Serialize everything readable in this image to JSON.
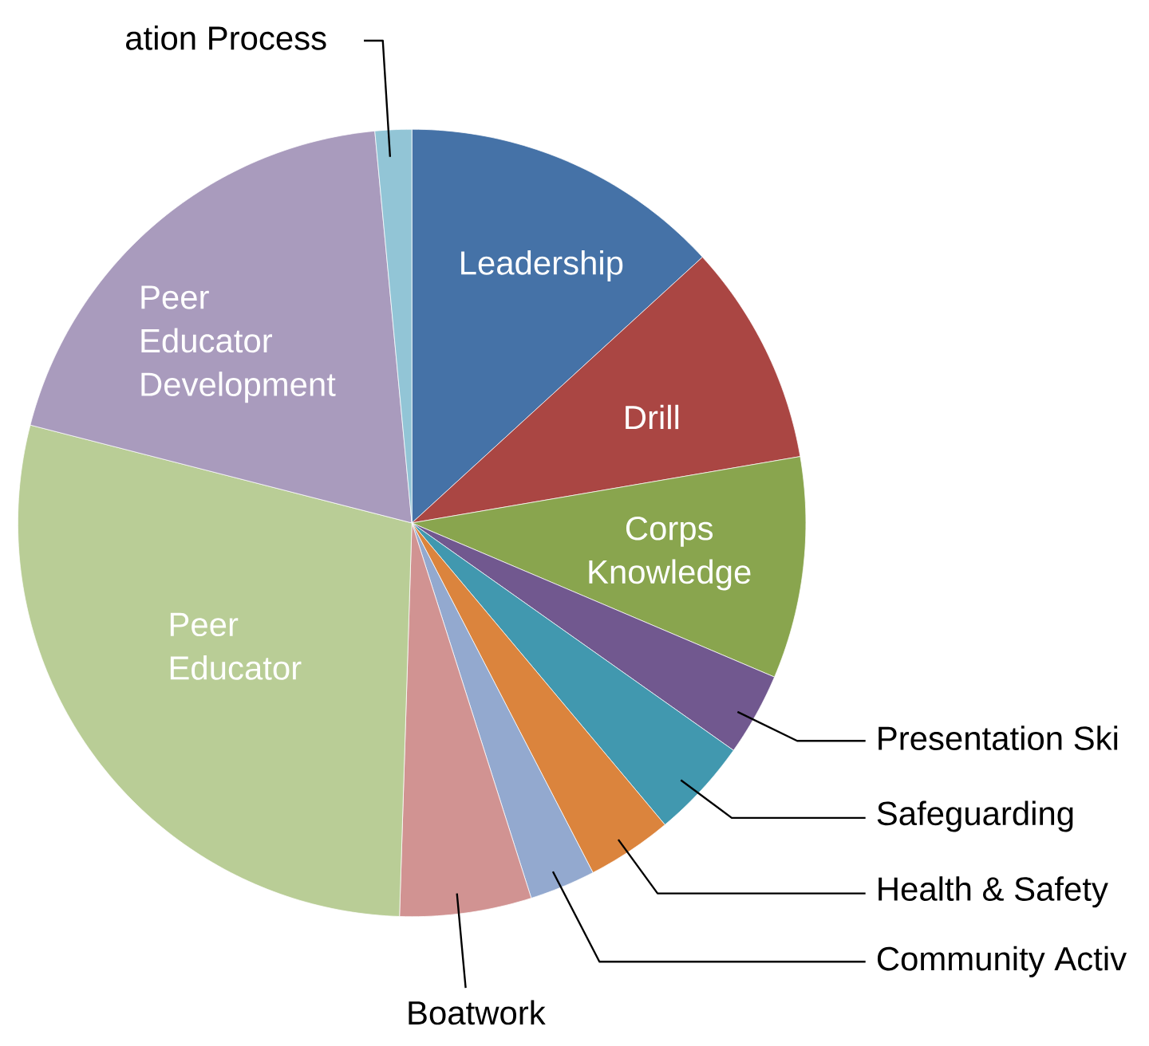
{
  "chart_data": {
    "type": "pie",
    "categories": [
      "Leadership",
      "Drill",
      "Corps Knowledge",
      "Presentation Ski",
      "Safeguarding",
      "Health & Safety",
      "Community Activ",
      "Boatwork",
      "Peer Educator",
      "Peer Educator Development",
      "ation Process"
    ],
    "values": [
      13.2,
      9.1,
      9.1,
      3.4,
      4.1,
      3.5,
      2.7,
      5.4,
      28.5,
      19.5,
      1.5
    ],
    "colors": [
      "#4572a7",
      "#aa4643",
      "#89a54e",
      "#71588f",
      "#4198af",
      "#db843d",
      "#93a9cf",
      "#d19392",
      "#b9cd96",
      "#a99bbd",
      "#92c5d6"
    ]
  }
}
